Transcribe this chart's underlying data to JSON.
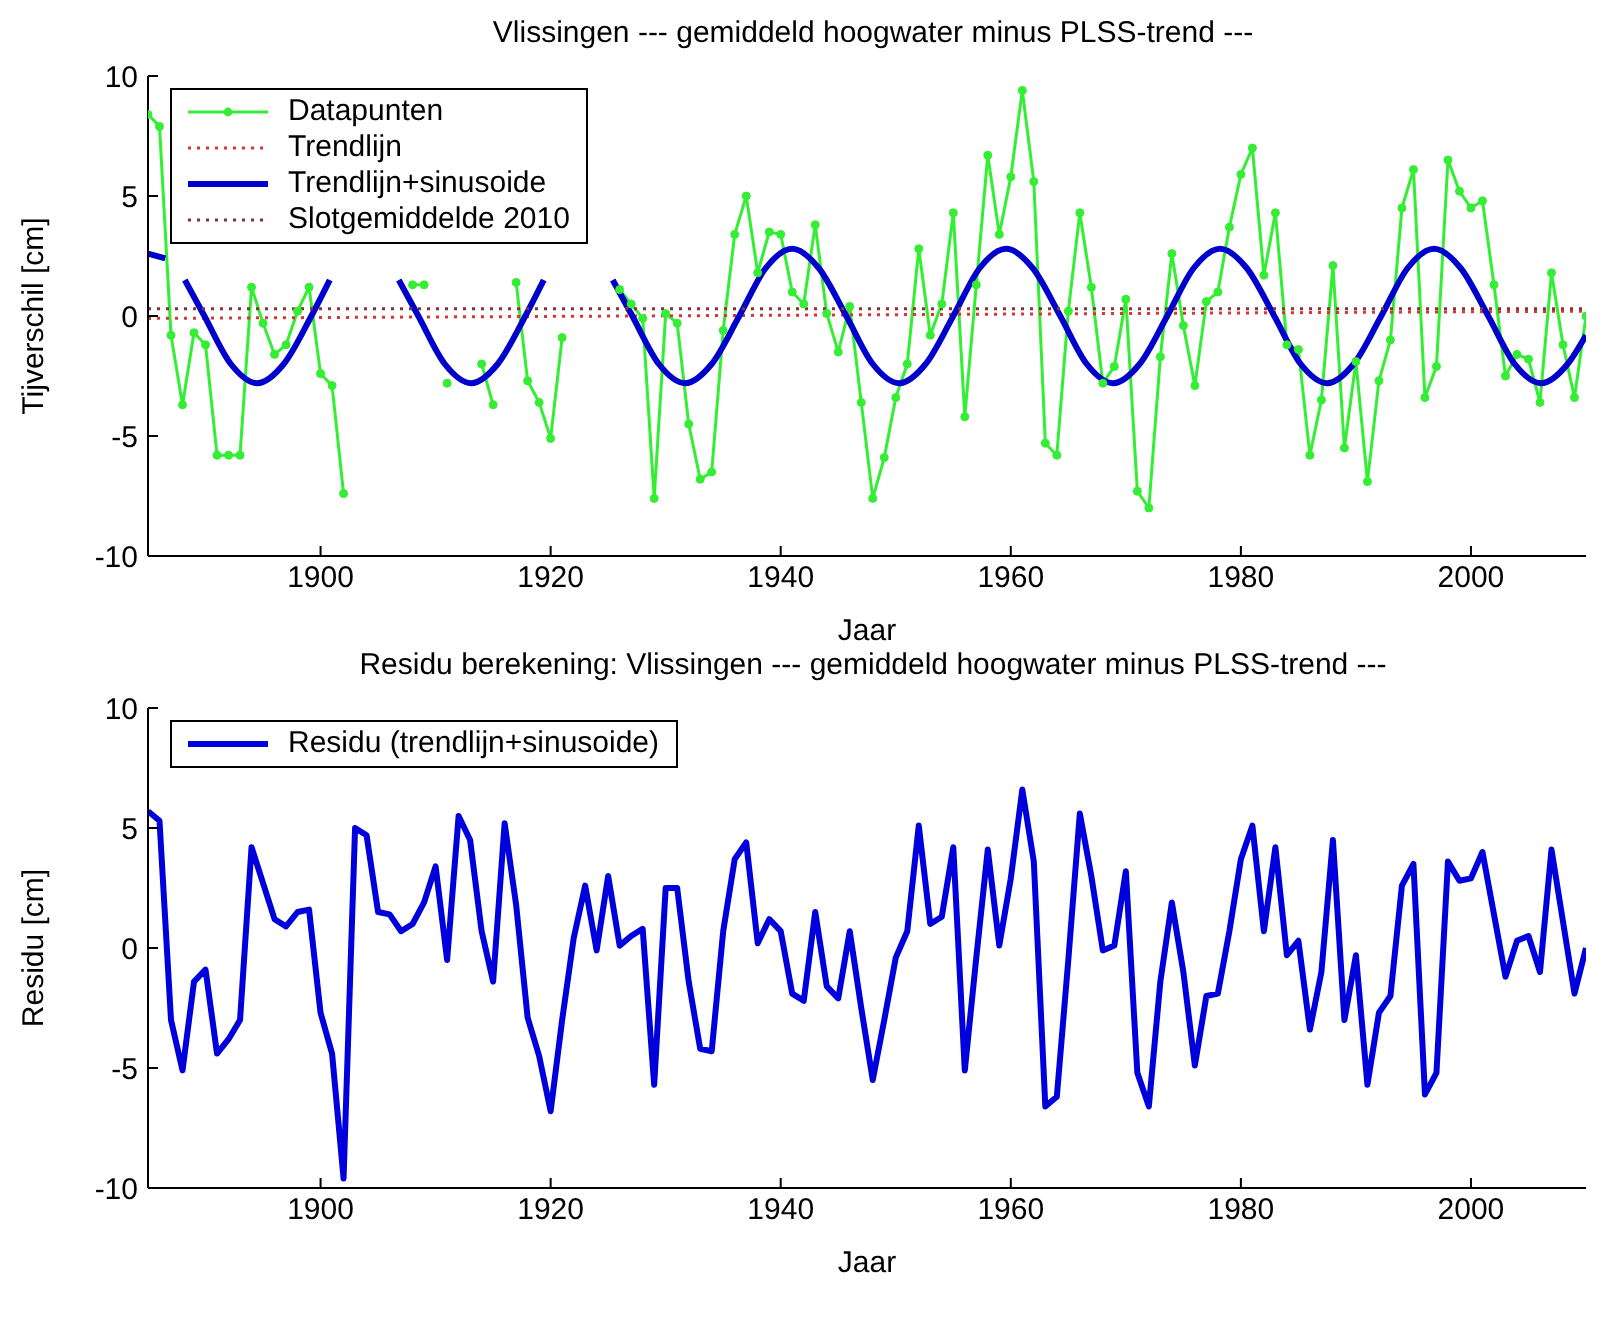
{
  "chart_data": [
    {
      "type": "line",
      "title": "Vlissingen --- gemiddeld hoogwater minus PLSS-trend ---",
      "xlabel": "Jaar",
      "ylabel": "Tijverschil [cm]",
      "x": [
        1885,
        1886,
        1887,
        1888,
        1889,
        1890,
        1891,
        1892,
        1893,
        1894,
        1895,
        1896,
        1897,
        1898,
        1899,
        1900,
        1901,
        1902,
        1903,
        1904,
        1905,
        1906,
        1907,
        1908,
        1909,
        1910,
        1911,
        1912,
        1913,
        1914,
        1915,
        1916,
        1917,
        1918,
        1919,
        1920,
        1921,
        1922,
        1923,
        1924,
        1925,
        1926,
        1927,
        1928,
        1929,
        1930,
        1931,
        1932,
        1933,
        1934,
        1935,
        1936,
        1937,
        1938,
        1939,
        1940,
        1941,
        1942,
        1943,
        1944,
        1945,
        1946,
        1947,
        1948,
        1949,
        1950,
        1951,
        1952,
        1953,
        1954,
        1955,
        1956,
        1957,
        1958,
        1959,
        1960,
        1961,
        1962,
        1963,
        1964,
        1965,
        1966,
        1967,
        1968,
        1969,
        1970,
        1971,
        1972,
        1973,
        1974,
        1975,
        1976,
        1977,
        1978,
        1979,
        1980,
        1981,
        1982,
        1983,
        1984,
        1985,
        1986,
        1987,
        1988,
        1989,
        1990,
        1991,
        1992,
        1993,
        1994,
        1995,
        1996,
        1997,
        1998,
        1999,
        2000,
        2001,
        2002,
        2003,
        2004,
        2005,
        2006,
        2007,
        2008,
        2009,
        2010
      ],
      "xlim": [
        1885,
        2010
      ],
      "xticks": [
        1900,
        1920,
        1940,
        1960,
        1980,
        2000
      ],
      "ylim": [
        -10,
        10
      ],
      "yticks": [
        -10,
        -5,
        0,
        5,
        10
      ],
      "legend": "top left",
      "marker": "none",
      "line_style": "solid",
      "series": [
        {
          "name": "Datapunten",
          "color": "#33ee33",
          "marker": "circle",
          "values": [
            8.4,
            7.9,
            -0.8,
            -3.7,
            -0.7,
            -1.2,
            -5.8,
            -5.8,
            -5.8,
            1.2,
            -0.3,
            -1.6,
            -1.2,
            0.2,
            1.2,
            -2.4,
            -2.9,
            -7.4,
            null,
            null,
            null,
            null,
            null,
            1.3,
            1.3,
            null,
            -2.8,
            null,
            null,
            -2.0,
            -3.7,
            null,
            1.4,
            -2.7,
            -3.6,
            -5.1,
            -0.9,
            null,
            null,
            null,
            null,
            1.1,
            0.5,
            -0.1,
            -7.6,
            0.1,
            -0.3,
            -4.5,
            -6.8,
            -6.5,
            -0.6,
            3.4,
            5.0,
            1.8,
            3.5,
            3.4,
            1.0,
            0.5,
            3.8,
            0.1,
            -1.5,
            0.4,
            -3.6,
            -7.6,
            -5.9,
            -3.4,
            -2.0,
            2.8,
            -0.8,
            0.5,
            4.3,
            -4.2,
            1.3,
            6.7,
            3.4,
            5.8,
            9.4,
            5.6,
            -5.3,
            -5.8,
            0.2,
            4.3,
            1.2,
            -2.8,
            -2.1,
            0.7,
            -7.3,
            -8.0,
            -1.7,
            2.6,
            -0.4,
            -2.9,
            0.6,
            1.0,
            3.7,
            5.9,
            7.0,
            1.7,
            4.3,
            -1.2,
            -1.4,
            -5.8,
            -3.5,
            2.1,
            -5.5,
            -1.9,
            -6.9,
            -2.7,
            -1.0,
            4.5,
            6.1,
            -3.4,
            -2.1,
            6.5,
            5.2,
            4.5,
            4.8,
            1.3,
            -2.5,
            -1.6,
            -1.8,
            -3.6,
            1.8,
            -1.2,
            -3.4,
            0.0
          ]
        },
        {
          "name": "Trendlijn",
          "color": "#dd3333",
          "line_style": "dotted",
          "x": [
            1885,
            2010
          ],
          "values": [
            -0.1,
            0.2
          ]
        },
        {
          "name": "Trendlijn+sinusoide",
          "color": "#0000cc",
          "x": [
            1885,
            1886.5,
            1887.5,
            1888.2,
            1889.9,
            1892.2,
            1894.5,
            1896.8,
            1899.2,
            1900.8,
            1903.8,
            1906.8,
            1908.5,
            1910.8,
            1913.1,
            1915.4,
            1917.8,
            1919.4,
            1922.4,
            1925.4,
            1927.1,
            1929.4,
            1931.7,
            1934.0,
            1936.4,
            1938.7,
            1941.0,
            1943.3,
            1945.7,
            1948.0,
            1950.3,
            1952.6,
            1955.0,
            1957.3,
            1959.6,
            1961.9,
            1964.3,
            1966.6,
            1968.9,
            1971.2,
            1973.6,
            1975.9,
            1978.2,
            1980.5,
            1982.9,
            1985.2,
            1987.5,
            1989.8,
            1992.2,
            1994.5,
            1996.8,
            1999.1,
            2001.5,
            2003.8,
            2006.1,
            2008.4,
            2010
          ],
          "values": [
            2.6,
            2.4,
            null,
            1.5,
            0,
            -2.0,
            -2.8,
            -2.0,
            0,
            1.5,
            null,
            1.5,
            0,
            -2.0,
            -2.8,
            -2.0,
            0,
            1.5,
            null,
            1.5,
            0,
            -2.0,
            -2.8,
            -2.0,
            0,
            2.0,
            2.8,
            2.0,
            0,
            -2.0,
            -2.8,
            -2.0,
            0,
            2.0,
            2.8,
            2.0,
            0,
            -2.0,
            -2.8,
            -2.0,
            0,
            2.0,
            2.8,
            2.0,
            0,
            -2.0,
            -2.8,
            -2.0,
            0,
            2.0,
            2.8,
            2.0,
            0,
            -2.0,
            -2.8,
            -2.0,
            -0.8
          ]
        },
        {
          "name": "Slotgemiddelde 2010",
          "color": "#883333",
          "line_style": "dotted",
          "x": [
            1885,
            2010
          ],
          "values": [
            0.3,
            0.3
          ]
        }
      ]
    },
    {
      "type": "line",
      "title": "Residu berekening: Vlissingen --- gemiddeld hoogwater minus PLSS-trend ---",
      "xlabel": "Jaar",
      "ylabel": "Residu [cm]",
      "x": [
        1885,
        1886,
        1887,
        1888,
        1889,
        1890,
        1891,
        1892,
        1893,
        1894,
        1895,
        1896,
        1897,
        1898,
        1899,
        1900,
        1901,
        1902,
        1903,
        1904,
        1905,
        1906,
        1907,
        1908,
        1909,
        1910,
        1911,
        1912,
        1913,
        1914,
        1915,
        1916,
        1917,
        1918,
        1919,
        1920,
        1921,
        1922,
        1923,
        1924,
        1925,
        1926,
        1927,
        1928,
        1929,
        1930,
        1931,
        1932,
        1933,
        1934,
        1935,
        1936,
        1937,
        1938,
        1939,
        1940,
        1941,
        1942,
        1943,
        1944,
        1945,
        1946,
        1947,
        1948,
        1949,
        1950,
        1951,
        1952,
        1953,
        1954,
        1955,
        1956,
        1957,
        1958,
        1959,
        1960,
        1961,
        1962,
        1963,
        1964,
        1965,
        1966,
        1967,
        1968,
        1969,
        1970,
        1971,
        1972,
        1973,
        1974,
        1975,
        1976,
        1977,
        1978,
        1979,
        1980,
        1981,
        1982,
        1983,
        1984,
        1985,
        1986,
        1987,
        1988,
        1989,
        1990,
        1991,
        1992,
        1993,
        1994,
        1995,
        1996,
        1997,
        1998,
        1999,
        2000,
        2001,
        2002,
        2003,
        2004,
        2005,
        2006,
        2007,
        2008,
        2009,
        2010
      ],
      "xlim": [
        1885,
        2010
      ],
      "xticks": [
        1900,
        1920,
        1940,
        1960,
        1980,
        2000
      ],
      "ylim": [
        -10,
        10
      ],
      "yticks": [
        -10,
        -5,
        0,
        5,
        10
      ],
      "legend": "top left",
      "marker": "none",
      "line_style": "solid",
      "series": [
        {
          "name": "Residu (trendlijn+sinusoide)",
          "color": "#0000dd",
          "values": [
            5.7,
            5.3,
            -3.0,
            -5.1,
            -1.4,
            -0.9,
            -4.4,
            -3.8,
            -3.0,
            4.2,
            2.7,
            1.2,
            0.9,
            1.5,
            1.6,
            -2.7,
            -4.4,
            -9.6,
            5.0,
            4.7,
            1.5,
            1.4,
            0.7,
            1.0,
            1.9,
            3.4,
            -0.5,
            5.5,
            4.5,
            0.7,
            -1.4,
            5.2,
            1.8,
            -2.9,
            -4.5,
            -6.8,
            -3.0,
            0.4,
            2.6,
            -0.1,
            3.0,
            0.1,
            0.5,
            0.8,
            -5.7,
            2.5,
            2.5,
            -1.4,
            -4.2,
            -4.3,
            0.7,
            3.7,
            4.4,
            0.2,
            1.2,
            0.7,
            -1.9,
            -2.2,
            1.5,
            -1.6,
            -2.1,
            0.7,
            -2.5,
            -5.5,
            -3.0,
            -0.4,
            0.7,
            5.1,
            1.0,
            1.3,
            4.2,
            -5.1,
            -0.4,
            4.1,
            0.1,
            2.9,
            6.6,
            3.6,
            -6.6,
            -6.2,
            -0.5,
            5.6,
            3.0,
            -0.1,
            0.1,
            3.2,
            -5.2,
            -6.6,
            -1.4,
            1.9,
            -1.0,
            -4.9,
            -2.0,
            -1.9,
            0.7,
            3.7,
            5.1,
            0.7,
            4.2,
            -0.3,
            0.3,
            -3.4,
            -1.0,
            4.5,
            -3.0,
            -0.3,
            -5.7,
            -2.7,
            -2.0,
            2.6,
            3.5,
            -6.1,
            -5.2,
            3.6,
            2.8,
            2.9,
            4.0,
            1.4,
            -1.2,
            0.3,
            0.5,
            -1.0,
            4.1,
            1.1,
            -1.9,
            0.0
          ]
        }
      ]
    }
  ]
}
